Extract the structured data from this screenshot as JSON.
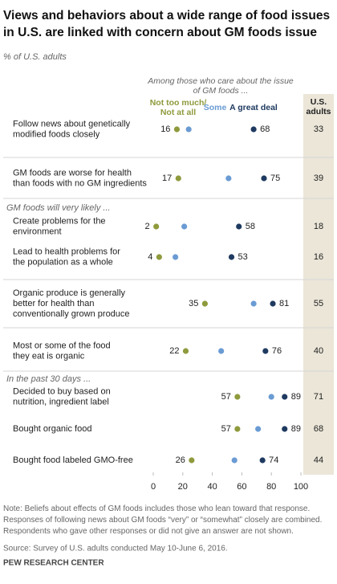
{
  "chart_data": {
    "type": "dot",
    "title": "Views and behaviors about a wide range of food issues\nin U.S. are linked with concern about GM foods issue",
    "subtitle": "% of U.S. adults",
    "annotation": "Among those who care about the issue\nof GM foods ...",
    "section_labels": [
      "GM foods will very likely ...",
      "In the past 30 days ..."
    ],
    "categories": [
      "Follow news about genetically\nmodified foods closely",
      "GM foods are worse for health\nthan foods with no GM ingredients",
      "Create problems for the\nenvironment",
      "Lead to health problems for\nthe population as a whole",
      "Organic produce is generally\nbetter for health than\nconventionally grown produce",
      "Most or some of the food\nthey eat is organic",
      "Decided to buy based on\nnutrition, ingredient label",
      "Bought organic food",
      "Bought food labeled GMO-free"
    ],
    "series": [
      {
        "name": "Not too much/\nNot at all",
        "color": "#8f9a3c",
        "values": [
          16,
          17,
          2,
          4,
          35,
          22,
          57,
          57,
          26
        ]
      },
      {
        "name": "Some",
        "color": "#6a9bd3",
        "values": [
          24,
          51,
          21,
          15,
          68,
          46,
          80,
          71,
          55
        ]
      },
      {
        "name": "A great deal",
        "color": "#1f3a60",
        "values": [
          68,
          75,
          58,
          53,
          81,
          76,
          89,
          89,
          74
        ]
      }
    ],
    "total": {
      "name": "U.S.\nadults",
      "values": [
        33,
        39,
        18,
        16,
        55,
        40,
        71,
        68,
        44
      ]
    },
    "xlim": [
      0,
      100
    ],
    "xticks": [
      0,
      20,
      40,
      60,
      80,
      100
    ],
    "note": "Note: Beliefs about effects of GM foods includes those who lean toward that response.\nResponses of following news about GM foods “very” or “somewhat” closely are combined.\nRespondents who gave other responses or did not give an answer are not shown.",
    "source": "Source: Survey of U.S. adults conducted May 10-June 6, 2016.",
    "credit": "PEW RESEARCH CENTER"
  }
}
